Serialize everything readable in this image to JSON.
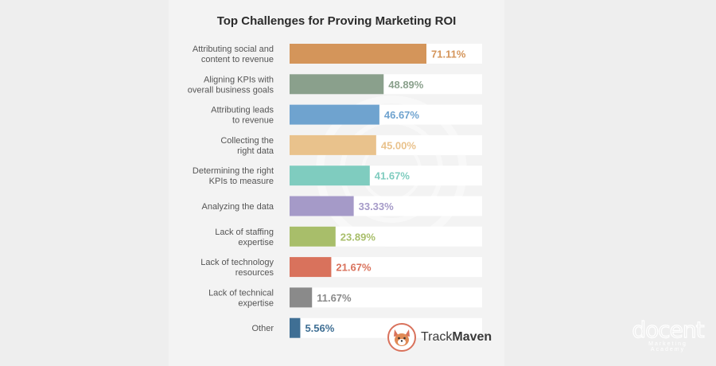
{
  "chart_data": {
    "type": "bar",
    "orientation": "horizontal",
    "title": "Top Challenges for Proving Marketing ROI",
    "categories": [
      [
        "Attributing social and",
        "content to revenue"
      ],
      [
        "Aligning KPIs with",
        "overall business goals"
      ],
      [
        "Attributing leads",
        "to revenue"
      ],
      [
        "Collecting the",
        "right data"
      ],
      [
        "Determining the right",
        "KPIs to measure"
      ],
      [
        "Analyzing the data"
      ],
      [
        "Lack of staffing",
        "expertise"
      ],
      [
        "Lack of technology",
        "resources"
      ],
      [
        "Lack of technical",
        "expertise"
      ],
      [
        "Other"
      ]
    ],
    "values": [
      71.11,
      48.89,
      46.67,
      45.0,
      41.67,
      33.33,
      23.89,
      21.67,
      11.67,
      5.56
    ],
    "value_labels": [
      "71.11%",
      "48.89%",
      "46.67%",
      "45.00%",
      "41.67%",
      "33.33%",
      "23.89%",
      "21.67%",
      "11.67%",
      "5.56%"
    ],
    "colors": [
      "#d4955a",
      "#8aa08c",
      "#6fa3cf",
      "#e9c28c",
      "#7fccbf",
      "#a59ac8",
      "#a8be6a",
      "#d9725c",
      "#8a8a8a",
      "#3f6f94"
    ],
    "xlim": [
      0,
      100
    ],
    "grid": false,
    "legend": "none"
  },
  "branding": {
    "logo_prefix": "Track",
    "logo_suffix": "Maven",
    "logo_icon": "corgi-mascot-icon",
    "watermark_main": "docent",
    "watermark_sub": "Marketing Academy"
  }
}
